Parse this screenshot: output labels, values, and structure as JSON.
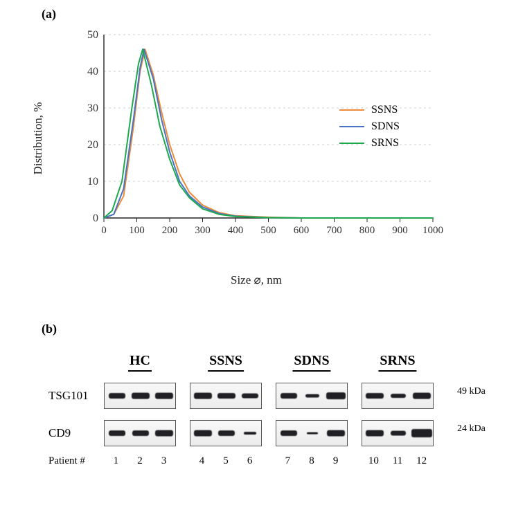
{
  "panel_a": {
    "label": "(a)",
    "chart": {
      "type": "line",
      "xlabel": "Size ⌀, nm",
      "ylabel": "Distribution, %",
      "xlim": [
        0,
        1000
      ],
      "ylim": [
        0,
        50
      ],
      "xtick_step": 100,
      "ytick_step": 10,
      "xticks": [
        0,
        100,
        200,
        300,
        400,
        500,
        600,
        700,
        800,
        900,
        1000
      ],
      "yticks": [
        0,
        10,
        20,
        30,
        40,
        50
      ],
      "grid_color": "#cfcfcf",
      "grid_dash": "3,4",
      "axis_color": "#222222",
      "background_color": "#ffffff",
      "line_width": 2,
      "label_fontsize": 17,
      "tick_fontsize": 15,
      "legend_fontsize": 16,
      "series": [
        {
          "name": "SSNS",
          "color": "#ed8b3b",
          "x": [
            0,
            30,
            60,
            90,
            110,
            125,
            150,
            175,
            200,
            230,
            260,
            300,
            350,
            400,
            500,
            600,
            1000
          ],
          "y": [
            0,
            1,
            6,
            25,
            40,
            46,
            39,
            29,
            20,
            12,
            7,
            3.5,
            1.5,
            0.6,
            0.2,
            0,
            0
          ]
        },
        {
          "name": "SDNS",
          "color": "#4673c4",
          "x": [
            0,
            30,
            60,
            90,
            110,
            122,
            150,
            175,
            200,
            230,
            260,
            300,
            350,
            400,
            500,
            600,
            1000
          ],
          "y": [
            0,
            1,
            8,
            27,
            41,
            46,
            38,
            27,
            18,
            10,
            6,
            3,
            1.2,
            0.5,
            0.1,
            0,
            0
          ]
        },
        {
          "name": "SRNS",
          "color": "#1ea84e",
          "x": [
            0,
            25,
            55,
            85,
            105,
            118,
            145,
            170,
            200,
            230,
            260,
            300,
            350,
            400,
            500,
            600,
            1000
          ],
          "y": [
            0,
            2,
            10,
            30,
            42,
            46,
            36,
            25,
            16,
            9,
            5.5,
            2.5,
            1,
            0.4,
            0.1,
            0,
            0
          ]
        }
      ],
      "legend_position": "right"
    }
  },
  "panel_b": {
    "label": "(b)",
    "groups": [
      "HC",
      "SSNS",
      "SDNS",
      "SRNS"
    ],
    "row_labels": [
      "TSG101",
      "CD9"
    ],
    "size_labels": [
      "49 kDa",
      "24 kDa"
    ],
    "patient_label": "Patient #",
    "patient_numbers": [
      [
        1,
        2,
        3
      ],
      [
        4,
        5,
        6
      ],
      [
        7,
        8,
        9
      ],
      [
        10,
        11,
        12
      ]
    ],
    "band_color": "#202024",
    "lane_border_color": "#555555",
    "lane_background": "#f2f2f2",
    "bands": {
      "TSG101": [
        [
          {
            "w": 24,
            "h": 8
          },
          {
            "w": 26,
            "h": 9
          },
          {
            "w": 26,
            "h": 9
          }
        ],
        [
          {
            "w": 26,
            "h": 9
          },
          {
            "w": 26,
            "h": 8
          },
          {
            "w": 24,
            "h": 7
          }
        ],
        [
          {
            "w": 24,
            "h": 8
          },
          {
            "w": 20,
            "h": 5
          },
          {
            "w": 28,
            "h": 10
          }
        ],
        [
          {
            "w": 26,
            "h": 8
          },
          {
            "w": 22,
            "h": 6
          },
          {
            "w": 26,
            "h": 9
          }
        ]
      ],
      "CD9": [
        [
          {
            "w": 24,
            "h": 8
          },
          {
            "w": 24,
            "h": 8
          },
          {
            "w": 26,
            "h": 9
          }
        ],
        [
          {
            "w": 26,
            "h": 9
          },
          {
            "w": 24,
            "h": 8
          },
          {
            "w": 18,
            "h": 4
          }
        ],
        [
          {
            "w": 24,
            "h": 8
          },
          {
            "w": 16,
            "h": 3
          },
          {
            "w": 26,
            "h": 9
          }
        ],
        [
          {
            "w": 26,
            "h": 9
          },
          {
            "w": 22,
            "h": 7
          },
          {
            "w": 30,
            "h": 12
          }
        ]
      ]
    }
  }
}
